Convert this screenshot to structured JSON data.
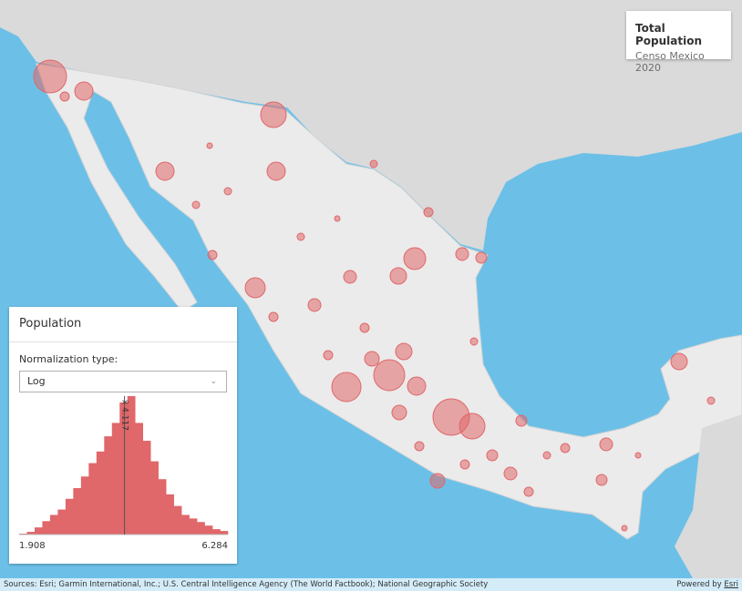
{
  "legend": {
    "title": "Total Population",
    "subtitle": "Censo Mexico 2020"
  },
  "panel": {
    "title": "Population",
    "field_label": "Normalization type:",
    "selected": "Log",
    "histogram": {
      "counts": [
        1,
        3,
        8,
        15,
        22,
        28,
        40,
        52,
        65,
        80,
        93,
        110,
        125,
        148,
        155,
        125,
        105,
        82,
        62,
        45,
        32,
        22,
        18,
        14,
        10,
        6,
        4
      ],
      "min": 1.908,
      "max": 6.284,
      "mean": {
        "value": 4.117,
        "label": "x̄ 4.117"
      }
    }
  },
  "attribution": {
    "sources": "Sources: Esri; Garmin International, Inc.; U.S. Central Intelligence Agency (The World Factbook); National Geographic Society",
    "powered_by": "Powered by",
    "provider": "Esri"
  }
}
